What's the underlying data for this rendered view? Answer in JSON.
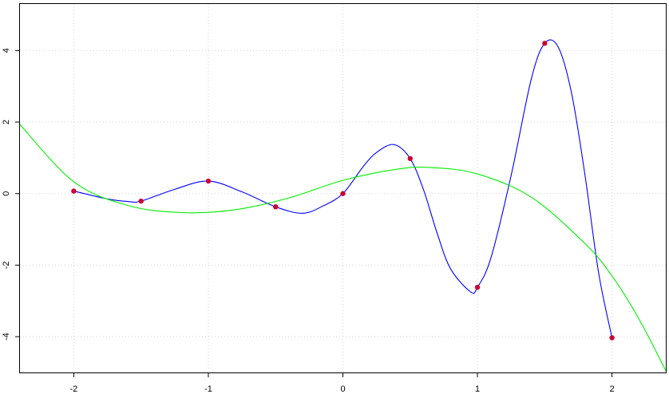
{
  "chart_data": {
    "type": "line",
    "title": "",
    "xlabel": "",
    "ylabel": "",
    "xlim": [
      -2.4,
      2.4
    ],
    "ylim": [
      -5.0,
      5.3
    ],
    "grid": true,
    "x_ticks": [
      -2,
      -1,
      0,
      1,
      2
    ],
    "x_tick_labels": [
      "-2",
      "-1",
      "0",
      "1",
      "2"
    ],
    "y_ticks": [
      -4,
      -2,
      0,
      2,
      4
    ],
    "y_tick_labels": [
      "-4",
      "-2",
      "0",
      "2",
      "4"
    ],
    "points": {
      "color": "#cc0033",
      "x": [
        -2.0,
        -1.5,
        -1.0,
        -0.5,
        0.0,
        0.5,
        1.0,
        1.5,
        2.0
      ],
      "y": [
        0.07,
        -0.21,
        0.35,
        -0.37,
        0.0,
        0.98,
        -2.62,
        4.2,
        -4.03
      ]
    },
    "series": [
      {
        "type": "spline",
        "color": "#0000ff",
        "x": [
          -2.0,
          -1.75,
          -1.6,
          -1.5,
          -1.25,
          -1.0,
          -0.75,
          -0.5,
          -0.3,
          -0.15,
          0.0,
          0.15,
          0.25,
          0.38,
          0.5,
          0.6,
          0.7,
          0.8,
          0.95,
          1.0,
          1.1,
          1.25,
          1.4,
          1.5,
          1.6,
          1.7,
          1.8,
          1.9,
          2.0
        ],
        "y": [
          0.07,
          -0.15,
          -0.22,
          -0.21,
          0.12,
          0.35,
          0.05,
          -0.37,
          -0.55,
          -0.35,
          0.0,
          0.75,
          1.15,
          1.37,
          0.98,
          0.1,
          -1.1,
          -2.1,
          -2.75,
          -2.62,
          -1.8,
          0.5,
          3.2,
          4.2,
          4.1,
          2.8,
          0.5,
          -2.2,
          -4.03
        ]
      },
      {
        "type": "fit",
        "color": "#00ee00",
        "x": [
          -2.4,
          -2.0,
          -1.6,
          -1.2,
          -0.8,
          -0.4,
          0.0,
          0.4,
          0.65,
          1.0,
          1.4,
          1.8,
          2.0,
          2.2,
          2.4
        ],
        "y": [
          1.93,
          0.33,
          -0.33,
          -0.53,
          -0.45,
          -0.12,
          0.37,
          0.68,
          0.73,
          0.55,
          -0.1,
          -1.4,
          -2.3,
          -3.5,
          -4.95
        ]
      }
    ]
  }
}
